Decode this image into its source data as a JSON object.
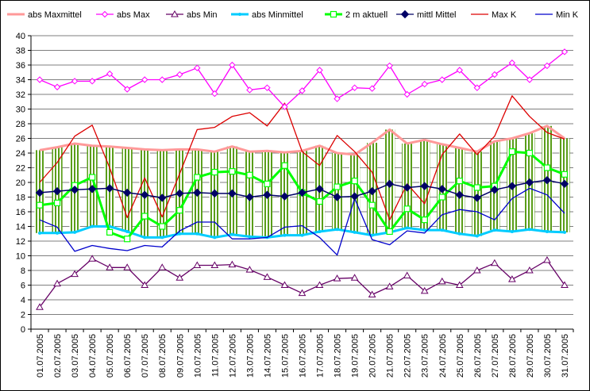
{
  "chart_data": {
    "type": "line",
    "title": "",
    "xlabel": "",
    "ylabel": "",
    "ylim": [
      0,
      40
    ],
    "ytick_step": 2,
    "grid": "horizontal",
    "legend_position": "top",
    "categories": [
      "01.07.2005",
      "02.07.2005",
      "03.07.2005",
      "04.07.2005",
      "05.07.2005",
      "06.07.2005",
      "07.07.2005",
      "08.07.2005",
      "09.07.2005",
      "10.07.2005",
      "11.07.2005",
      "12.07.2005",
      "13.07.2005",
      "14.07.2005",
      "15.07.2005",
      "16.07.2005",
      "17.07.2005",
      "18.07.2005",
      "19.07.2005",
      "20.07.2005",
      "21.07.2005",
      "22.07.2005",
      "23.07.2005",
      "24.07.2005",
      "25.07.2005",
      "26.07.2005",
      "27.07.2005",
      "28.07.2005",
      "29.07.2005",
      "30.07.2005",
      "31.07.2005"
    ],
    "series": [
      {
        "name": "abs Maxmittel",
        "color": "#ff9999",
        "marker": "none",
        "values": [
          24.4,
          24.8,
          25.3,
          25.0,
          24.9,
          24.7,
          24.5,
          24.4,
          24.5,
          24.5,
          24.2,
          24.9,
          24.2,
          24.3,
          24.1,
          24.3,
          25.0,
          24.0,
          23.8,
          25.4,
          27.2,
          25.3,
          25.8,
          25.2,
          24.7,
          24.2,
          25.6,
          26.0,
          26.7,
          27.7,
          26.0
        ]
      },
      {
        "name": "abs Max",
        "color": "#ff00ff",
        "marker": "diamond-open",
        "values": [
          34.0,
          33.0,
          33.8,
          33.8,
          34.8,
          32.7,
          34.0,
          34.0,
          34.7,
          35.6,
          32.1,
          36.0,
          32.6,
          32.9,
          30.3,
          32.5,
          35.3,
          31.4,
          32.9,
          32.8,
          35.9,
          32.0,
          33.4,
          34.0,
          35.3,
          32.9,
          34.7,
          36.3,
          34.0,
          35.9,
          37.8
        ]
      },
      {
        "name": "abs Min",
        "color": "#660066",
        "marker": "triangle-open",
        "values": [
          3.0,
          6.2,
          7.5,
          9.6,
          8.4,
          8.4,
          6.0,
          8.4,
          7.0,
          8.7,
          8.7,
          8.8,
          8.1,
          7.1,
          6.0,
          4.9,
          6.0,
          6.9,
          7.0,
          4.7,
          5.8,
          7.3,
          5.2,
          6.5,
          6.0,
          8.0,
          9.0,
          6.8,
          8.0,
          9.4,
          6.0
        ]
      },
      {
        "name": "abs Minmittel",
        "color": "#00ccff",
        "marker": "dot",
        "values": [
          13.1,
          13.1,
          13.2,
          14.0,
          14.0,
          13.3,
          12.5,
          12.5,
          13.0,
          13.0,
          12.5,
          12.9,
          12.6,
          12.5,
          12.8,
          12.8,
          13.3,
          13.6,
          13.2,
          12.8,
          13.2,
          13.8,
          13.5,
          13.5,
          13.0,
          12.7,
          13.5,
          13.3,
          13.6,
          13.3,
          13.2
        ]
      },
      {
        "name": "2 m aktuell",
        "color": "#00ff00",
        "marker": "square-open",
        "values": [
          16.9,
          17.2,
          19.6,
          20.7,
          13.2,
          12.3,
          15.4,
          14.0,
          16.2,
          20.7,
          21.4,
          21.5,
          21.0,
          19.8,
          22.3,
          18.6,
          17.4,
          19.4,
          20.2,
          16.9,
          13.3,
          16.4,
          14.9,
          18.0,
          20.2,
          19.3,
          19.5,
          24.2,
          24.0,
          22.0,
          21.1
        ]
      },
      {
        "name": "mittl Mittel",
        "color": "#000066",
        "marker": "diamond",
        "values": [
          18.6,
          18.8,
          19.0,
          19.1,
          19.2,
          18.6,
          18.3,
          17.9,
          18.5,
          18.6,
          18.5,
          18.5,
          18.0,
          18.3,
          18.1,
          18.6,
          19.1,
          18.0,
          18.1,
          18.8,
          19.8,
          19.3,
          19.5,
          19.1,
          18.3,
          17.9,
          19.0,
          19.5,
          20.0,
          20.3,
          19.8
        ]
      },
      {
        "name": "Max K",
        "color": "#dd0000",
        "marker": "none",
        "values": [
          20.0,
          22.7,
          26.3,
          27.8,
          22.0,
          15.2,
          20.6,
          15.3,
          21.2,
          27.2,
          27.5,
          29.0,
          29.5,
          27.7,
          30.8,
          24.2,
          22.3,
          26.4,
          24.2,
          21.4,
          14.9,
          19.8,
          17.1,
          23.8,
          26.6,
          23.8,
          26.3,
          31.8,
          29.0,
          26.8,
          25.9
        ]
      },
      {
        "name": "Min K",
        "color": "#0000cc",
        "marker": "none",
        "values": [
          14.9,
          13.9,
          10.6,
          11.4,
          11.0,
          10.7,
          11.4,
          11.2,
          13.4,
          14.6,
          14.6,
          12.3,
          12.3,
          12.5,
          13.9,
          14.1,
          12.5,
          10.1,
          17.8,
          12.2,
          11.5,
          13.4,
          13.1,
          15.6,
          16.3,
          16.0,
          14.9,
          17.8,
          19.2,
          18.3,
          15.8
        ]
      }
    ]
  }
}
